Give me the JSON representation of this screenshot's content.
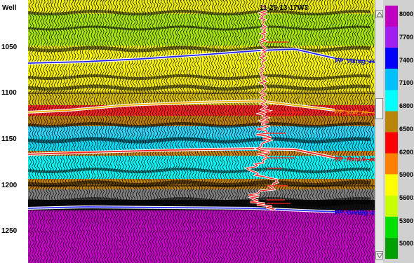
{
  "axis": {
    "title": "Well",
    "ticks": [
      {
        "label": "1050",
        "value": 1050
      },
      {
        "label": "1100",
        "value": 1100
      },
      {
        "label": "1150",
        "value": 1150
      },
      {
        "label": "1200",
        "value": 1200
      },
      {
        "label": "1250",
        "value": 1250
      }
    ]
  },
  "well": {
    "title": "11-25-13-17W3"
  },
  "horizons": [
    {
      "label": "PP_Viking_zc",
      "color": "#0000ee"
    },
    {
      "label": "PP_shfl_zc",
      "color": "#ff9900"
    },
    {
      "label": "PP_RshLk_zc",
      "color": "#ff0000"
    },
    {
      "label": "PP_GrvlBg_zc",
      "color": "#0000cc"
    }
  ],
  "legend": {
    "values": [
      "8000",
      "7700",
      "7400",
      "7100",
      "6800",
      "6500",
      "6200",
      "5900",
      "5600",
      "5300",
      "5000"
    ],
    "colors": [
      "#c000c0",
      "#a020f0",
      "#0000ff",
      "#00c0ff",
      "#00ffff",
      "#b8860b",
      "#ff0000",
      "#ff8000",
      "#ffff00",
      "#c8ff00",
      "#00e000",
      "#00a000"
    ]
  },
  "icons": {
    "scroll_up": "triangle-up-icon",
    "scroll_down": "triangle-down-icon"
  }
}
